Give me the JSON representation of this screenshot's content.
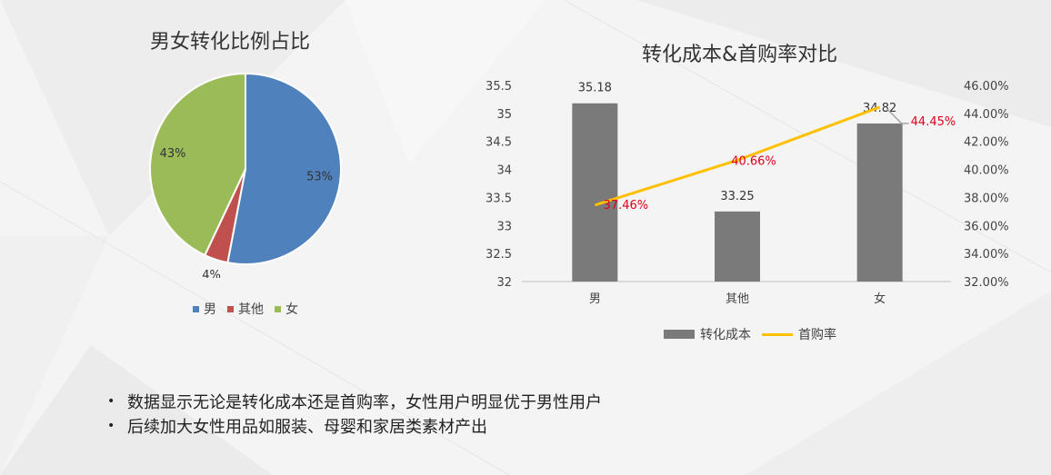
{
  "pie": {
    "title": "男女转化比例占比",
    "slices": [
      {
        "label": "男",
        "percent": 53,
        "value_label": "53%",
        "color": "#4f81bd"
      },
      {
        "label": "其他",
        "percent": 4,
        "value_label": "4%",
        "color": "#c0504d"
      },
      {
        "label": "女",
        "percent": 43,
        "value_label": "43%",
        "color": "#9bbb59"
      }
    ]
  },
  "combo": {
    "title": "转化成本&首购率对比",
    "legend": {
      "bar_label": "转化成本",
      "line_label": "首购率"
    }
  },
  "colors": {
    "bar": "#7a7a7a",
    "line": "#ffc000",
    "line_label": "#e0001b"
  },
  "notes": [
    "数据显示无论是转化成本还是首购率，女性用户明显优于男性用户",
    "后续加大女性用品如服装、母婴和家居类素材产出"
  ],
  "chart_data": [
    {
      "type": "pie",
      "title": "男女转化比例占比",
      "categories": [
        "男",
        "其他",
        "女"
      ],
      "values": [
        53,
        4,
        43
      ],
      "legend": "bottom"
    },
    {
      "type": "bar",
      "title": "转化成本&首购率对比",
      "categories": [
        "男",
        "其他",
        "女"
      ],
      "series": [
        {
          "name": "转化成本",
          "type": "bar",
          "axis": "left",
          "values": [
            35.18,
            33.25,
            34.82
          ],
          "labels": [
            "35.18",
            "33.25",
            "34.82"
          ]
        },
        {
          "name": "首购率",
          "type": "line",
          "axis": "right",
          "values": [
            37.46,
            40.66,
            44.45
          ],
          "labels": [
            "37.46%",
            "40.66%",
            "44.45%"
          ]
        }
      ],
      "ylim": [
        32,
        35.5
      ],
      "y_ticks": [
        "32",
        "32.5",
        "33",
        "33.5",
        "34",
        "34.5",
        "35",
        "35.5"
      ],
      "y2lim": [
        32,
        46
      ],
      "y2_ticks": [
        "32.00%",
        "34.00%",
        "36.00%",
        "38.00%",
        "40.00%",
        "42.00%",
        "44.00%",
        "46.00%"
      ],
      "legend": "bottom",
      "grid": false
    }
  ]
}
